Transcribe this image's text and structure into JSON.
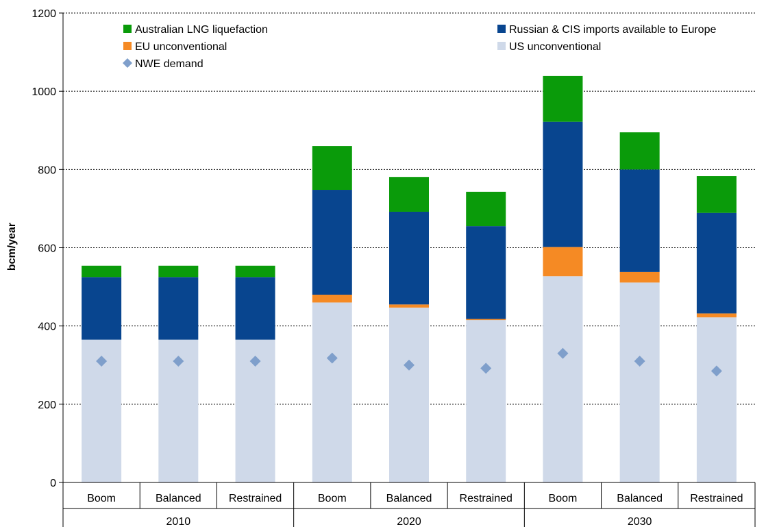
{
  "chart_data": {
    "type": "bar",
    "stacked": true,
    "ylabel": "bcm/year",
    "ylim": [
      0,
      1200
    ],
    "yticks": [
      0,
      200,
      400,
      600,
      800,
      1000,
      1200
    ],
    "grid": "horizontal-dotted",
    "categories": [
      "Boom",
      "Balanced",
      "Restrained",
      "Boom",
      "Balanced",
      "Restrained",
      "Boom",
      "Balanced",
      "Restrained"
    ],
    "groups": [
      {
        "label": "2010",
        "categories": [
          "Boom",
          "Balanced",
          "Restrained"
        ]
      },
      {
        "label": "2020",
        "categories": [
          "Boom",
          "Balanced",
          "Restrained"
        ]
      },
      {
        "label": "2030",
        "categories": [
          "Boom",
          "Balanced",
          "Restrained"
        ]
      }
    ],
    "series": [
      {
        "name": "US unconventional",
        "color": "#cfd9e9",
        "values": [
          365,
          365,
          365,
          460,
          447,
          415,
          527,
          511,
          422
        ]
      },
      {
        "name": "EU unconventional",
        "color": "#f58a24",
        "values": [
          0,
          0,
          0,
          20,
          8,
          3,
          75,
          27,
          10
        ]
      },
      {
        "name": "Russian & CIS imports available to Europe",
        "color": "#08458f",
        "values": [
          160,
          160,
          160,
          268,
          237,
          237,
          320,
          262,
          257
        ]
      },
      {
        "name": "Australian LNG liquefaction",
        "color": "#0a9b0a",
        "values": [
          29,
          29,
          29,
          112,
          89,
          88,
          117,
          95,
          94
        ]
      }
    ],
    "markers": {
      "name": "NWE demand",
      "color": "#7f9fcb",
      "shape": "diamond",
      "values": [
        310,
        310,
        310,
        318,
        300,
        292,
        330,
        310,
        285
      ]
    },
    "legend": {
      "placement": "top",
      "items": [
        {
          "name": "Australian LNG liquefaction",
          "color": "#0a9b0a",
          "shape": "square"
        },
        {
          "name": "Russian & CIS imports available to Europe",
          "color": "#08458f",
          "shape": "square"
        },
        {
          "name": "EU unconventional",
          "color": "#f58a24",
          "shape": "square"
        },
        {
          "name": "US unconventional",
          "color": "#cfd9e9",
          "shape": "square"
        },
        {
          "name": "NWE demand",
          "color": "#7f9fcb",
          "shape": "diamond"
        }
      ]
    }
  }
}
